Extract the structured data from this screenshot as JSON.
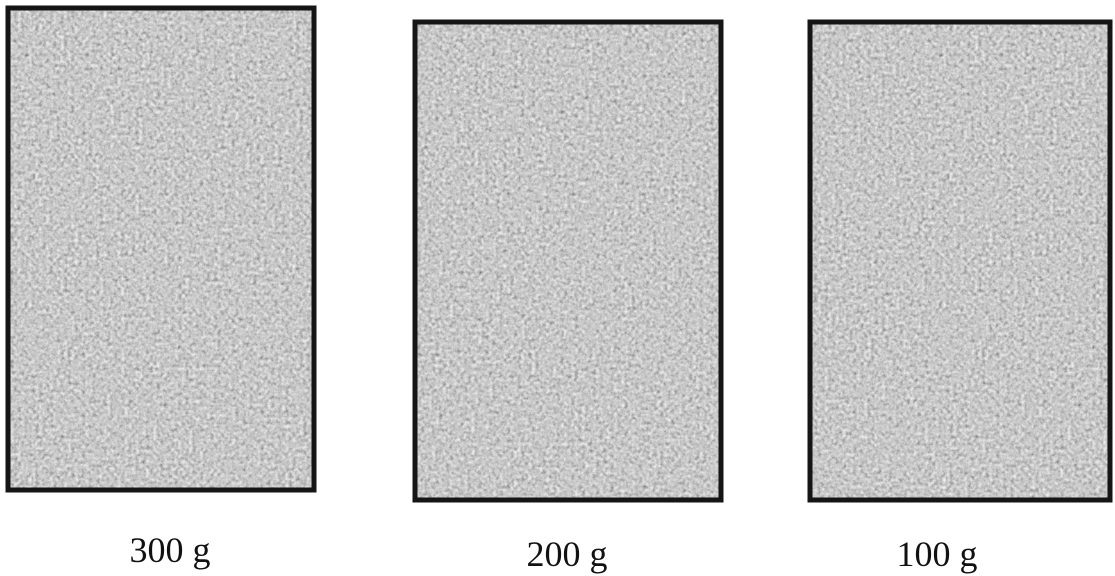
{
  "panels": [
    {
      "label": "300 g"
    },
    {
      "label": "200 g"
    },
    {
      "label": "100 g"
    }
  ]
}
